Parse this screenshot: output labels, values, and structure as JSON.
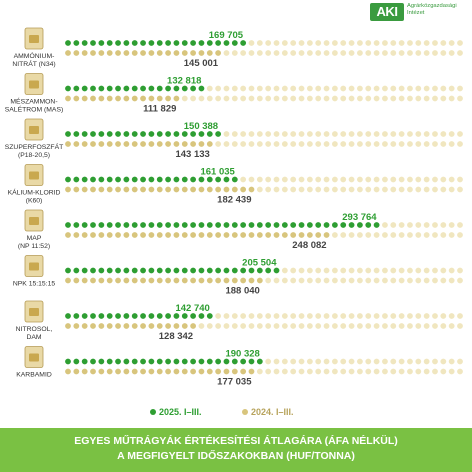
{
  "logo": {
    "mark": "AKI",
    "line1": "Agrárközgazdasági",
    "line2": "Intézet"
  },
  "colors": {
    "series_2025": "#2e9e32",
    "series_2024": "#d8c57d",
    "unfilled": "#f0e6bf",
    "footer_bg": "#7ac143"
  },
  "chart_data": {
    "type": "bar",
    "title": "EGYES MŰTRÁGYÁK ÉRTÉKESÍTÉSI ÁTLAGÁRA (ÁFA NÉLKÜL) A MEGFIGYELT IDŐSZAKOKBAN (HUF/TONNA)",
    "categories": [
      [
        "AMMÓNIUM-",
        "NITRÁT (N34)"
      ],
      [
        "MÉSZAMMON-",
        "SALÉTROM (MAS)"
      ],
      [
        "SZUPERFOSZFÁT",
        "(P18-20,5)"
      ],
      [
        "KÁLIUM-KLORID",
        "(K60)"
      ],
      [
        "MAP",
        "(NP 11:52)"
      ],
      [
        "NPK 15:15:15"
      ],
      [
        "NITROSOL,",
        "DAM"
      ],
      [
        "KARBAMID"
      ]
    ],
    "series": [
      {
        "name": "2025. I–III.",
        "values": [
          169705,
          132818,
          150388,
          161035,
          293764,
          205504,
          142740,
          190328
        ],
        "labels": [
          "169 705",
          "132 818",
          "150 388",
          "161 035",
          "293 764",
          "205 504",
          "142 740",
          "190 328"
        ]
      },
      {
        "name": "2024. I–III.",
        "values": [
          145001,
          111829,
          143133,
          182439,
          248082,
          188040,
          128342,
          177035
        ],
        "labels": [
          "145 001",
          "111 829",
          "143 133",
          "182 439",
          "248 082",
          "188 040",
          "128 342",
          "177 035"
        ]
      }
    ],
    "legend": "bottom",
    "grid": false,
    "xlim": [
      0,
      375000
    ]
  },
  "footer": {
    "line1": "EGYES MŰTRÁGYÁK ÉRTÉKESÍTÉSI ÁTLAGÁRA (ÁFA NÉLKÜL)",
    "line2": "A MEGFIGYELT IDŐSZAKOKBAN (HUF/TONNA)"
  }
}
